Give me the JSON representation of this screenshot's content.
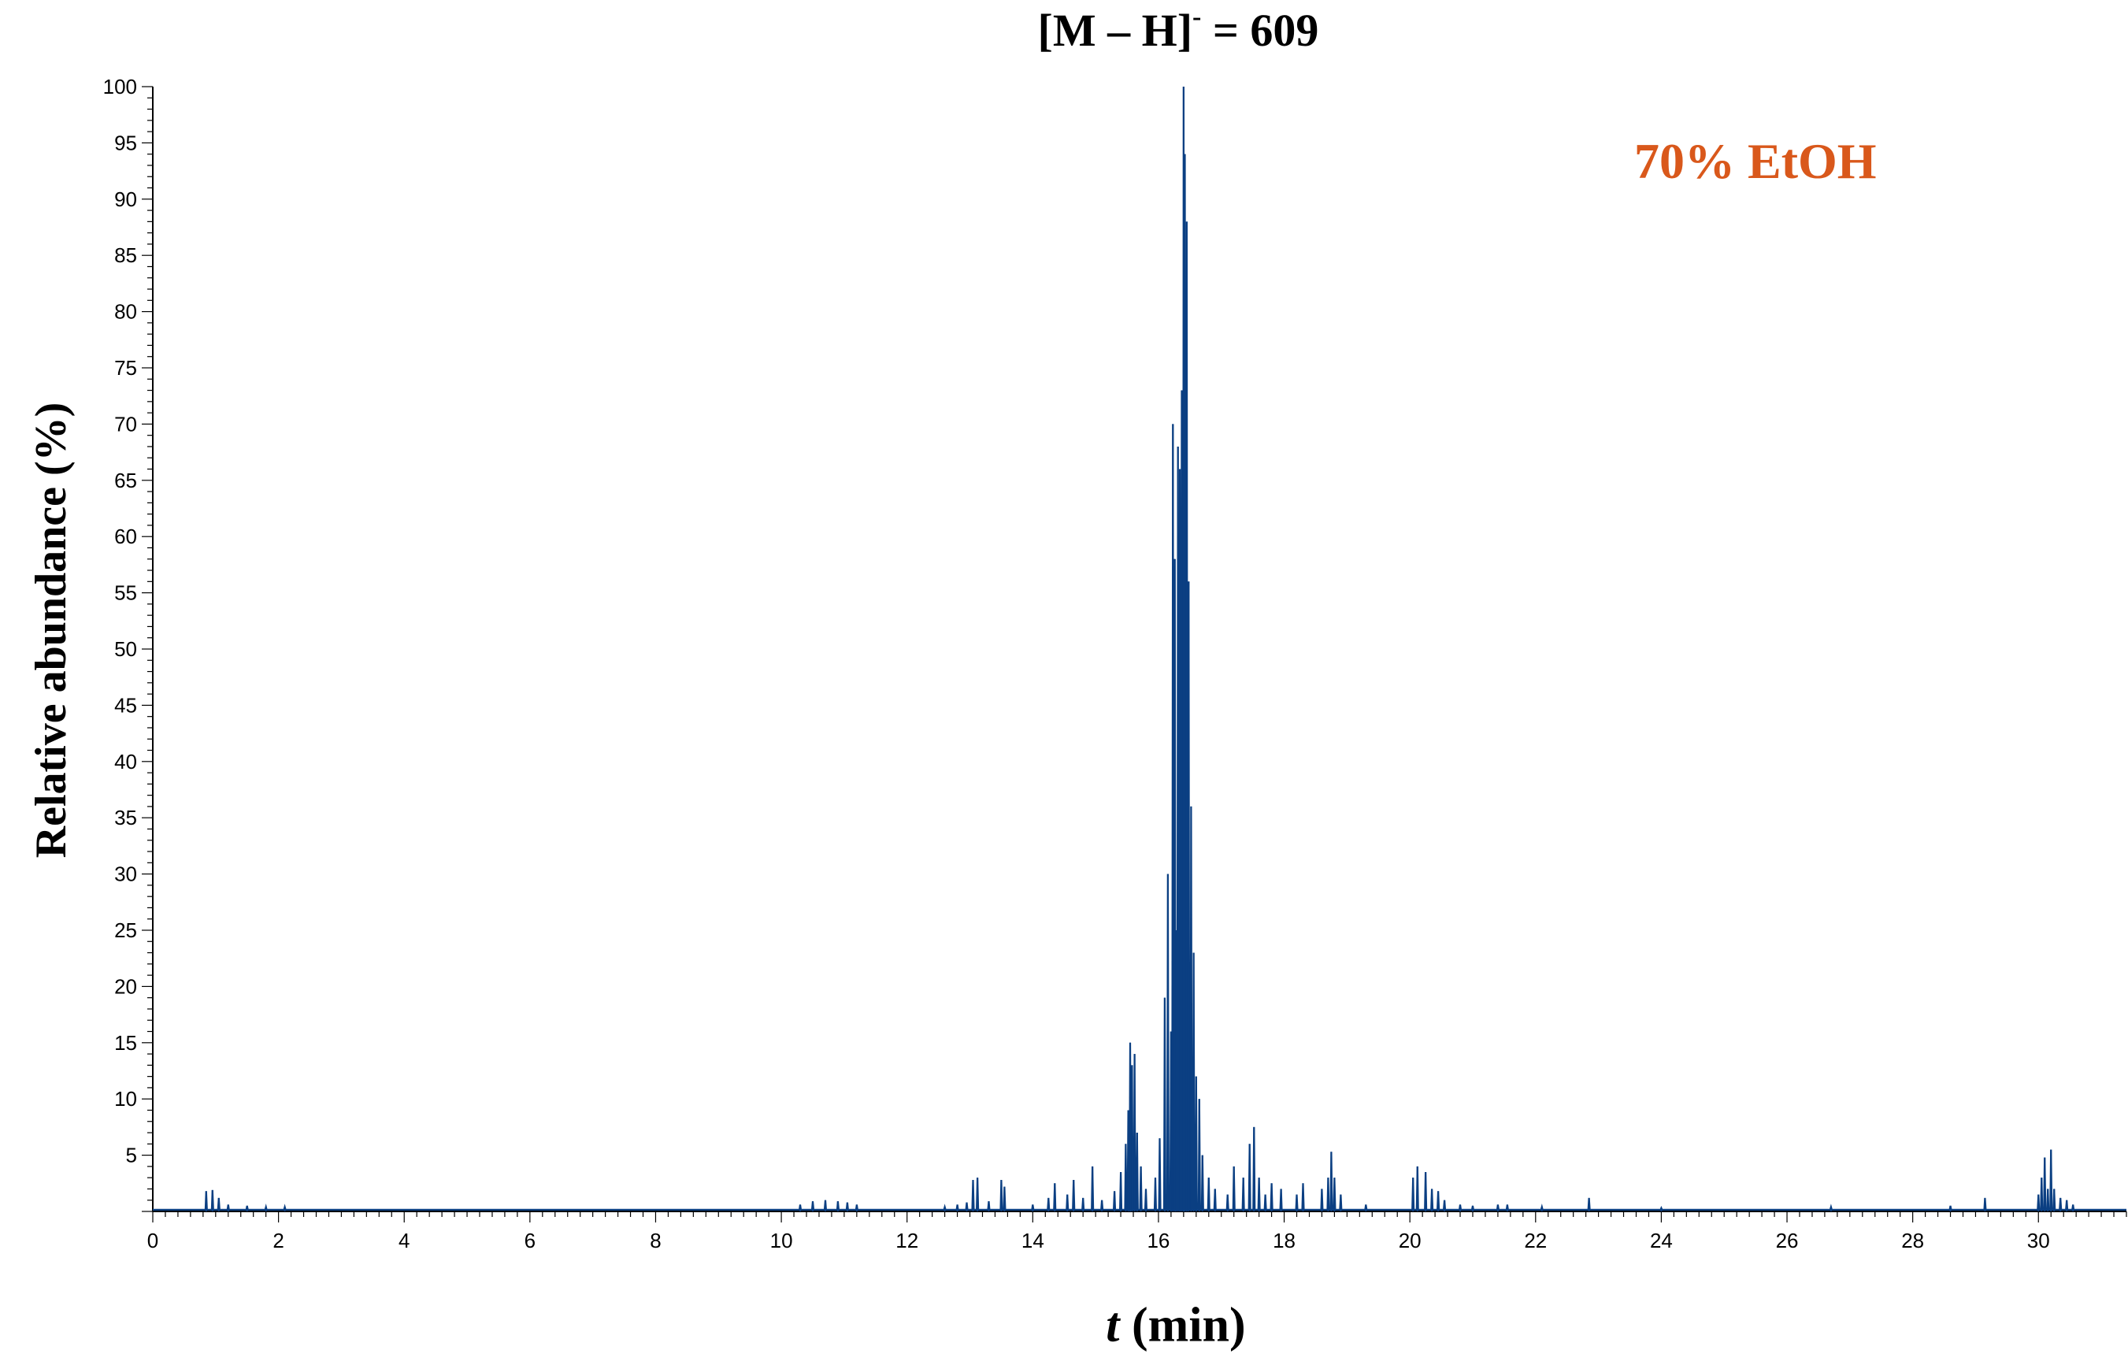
{
  "chart_data": {
    "type": "line",
    "title_parts": {
      "pre": "[M – H]",
      "sup": "-",
      "post": " = 609"
    },
    "annotation": "70% EtOH",
    "annotation_color": "#d9581b",
    "line_color": "#0b3f82",
    "xlabel_var": "t",
    "xlabel_unit": " (min)",
    "ylabel": "Relative abundance (%)",
    "xlim": [
      0,
      31.4
    ],
    "ylim": [
      0,
      100
    ],
    "xticks": [
      0,
      2,
      4,
      6,
      8,
      10,
      12,
      14,
      16,
      18,
      20,
      22,
      24,
      26,
      28,
      30
    ],
    "yticks": [
      5,
      10,
      15,
      20,
      25,
      30,
      35,
      40,
      45,
      50,
      55,
      60,
      65,
      70,
      75,
      80,
      85,
      90,
      95,
      100
    ],
    "grid": false,
    "peaks": [
      [
        0.85,
        1.8
      ],
      [
        0.95,
        1.9
      ],
      [
        1.05,
        1.2
      ],
      [
        1.2,
        0.6
      ],
      [
        1.5,
        0.5
      ],
      [
        1.8,
        0.4
      ],
      [
        2.1,
        0.4
      ],
      [
        10.3,
        0.6
      ],
      [
        10.5,
        0.9
      ],
      [
        10.7,
        1.0
      ],
      [
        10.9,
        0.9
      ],
      [
        11.05,
        0.8
      ],
      [
        11.2,
        0.6
      ],
      [
        12.6,
        0.4
      ],
      [
        12.8,
        0.6
      ],
      [
        12.95,
        0.8
      ],
      [
        13.05,
        2.8
      ],
      [
        13.12,
        3.0
      ],
      [
        13.3,
        0.9
      ],
      [
        13.5,
        2.8
      ],
      [
        13.55,
        2.2
      ],
      [
        14.0,
        0.6
      ],
      [
        14.25,
        1.2
      ],
      [
        14.35,
        2.5
      ],
      [
        14.55,
        1.5
      ],
      [
        14.65,
        2.8
      ],
      [
        14.8,
        1.2
      ],
      [
        14.95,
        4.0
      ],
      [
        15.1,
        1.0
      ],
      [
        15.3,
        1.8
      ],
      [
        15.4,
        3.5
      ],
      [
        15.48,
        6.0
      ],
      [
        15.52,
        9.0
      ],
      [
        15.55,
        15.0
      ],
      [
        15.58,
        13.0
      ],
      [
        15.62,
        14.0
      ],
      [
        15.66,
        7.0
      ],
      [
        15.72,
        4.0
      ],
      [
        15.8,
        2.0
      ],
      [
        15.95,
        3.0
      ],
      [
        16.02,
        6.5
      ],
      [
        16.1,
        19.0
      ],
      [
        16.15,
        30.0
      ],
      [
        16.2,
        16.0
      ],
      [
        16.23,
        70.0
      ],
      [
        16.26,
        58.0
      ],
      [
        16.28,
        25.0
      ],
      [
        16.31,
        68.0
      ],
      [
        16.34,
        66.0
      ],
      [
        16.37,
        73.0
      ],
      [
        16.4,
        100.0
      ],
      [
        16.42,
        94.0
      ],
      [
        16.45,
        88.0
      ],
      [
        16.48,
        56.0
      ],
      [
        16.52,
        36.0
      ],
      [
        16.56,
        23.0
      ],
      [
        16.6,
        12.0
      ],
      [
        16.65,
        10.0
      ],
      [
        16.7,
        5.0
      ],
      [
        16.8,
        3.0
      ],
      [
        16.9,
        2.0
      ],
      [
        17.1,
        1.5
      ],
      [
        17.2,
        4.0
      ],
      [
        17.35,
        3.0
      ],
      [
        17.45,
        6.0
      ],
      [
        17.52,
        7.5
      ],
      [
        17.6,
        3.0
      ],
      [
        17.7,
        1.5
      ],
      [
        17.8,
        2.5
      ],
      [
        17.95,
        2.0
      ],
      [
        18.2,
        1.5
      ],
      [
        18.3,
        2.5
      ],
      [
        18.6,
        2.0
      ],
      [
        18.7,
        3.0
      ],
      [
        18.75,
        5.3
      ],
      [
        18.8,
        3.0
      ],
      [
        18.9,
        1.5
      ],
      [
        19.3,
        0.6
      ],
      [
        20.05,
        3.0
      ],
      [
        20.12,
        4.0
      ],
      [
        20.25,
        3.5
      ],
      [
        20.35,
        2.0
      ],
      [
        20.45,
        1.8
      ],
      [
        20.55,
        1.0
      ],
      [
        20.8,
        0.6
      ],
      [
        21.0,
        0.5
      ],
      [
        21.4,
        0.6
      ],
      [
        21.55,
        0.6
      ],
      [
        22.1,
        0.4
      ],
      [
        22.85,
        1.2
      ],
      [
        24.0,
        0.3
      ],
      [
        26.7,
        0.4
      ],
      [
        28.6,
        0.5
      ],
      [
        29.15,
        1.2
      ],
      [
        30.0,
        1.5
      ],
      [
        30.05,
        3.0
      ],
      [
        30.1,
        4.8
      ],
      [
        30.15,
        2.0
      ],
      [
        30.2,
        5.5
      ],
      [
        30.25,
        2.0
      ],
      [
        30.35,
        1.2
      ],
      [
        30.45,
        1.0
      ],
      [
        30.55,
        0.6
      ]
    ]
  }
}
